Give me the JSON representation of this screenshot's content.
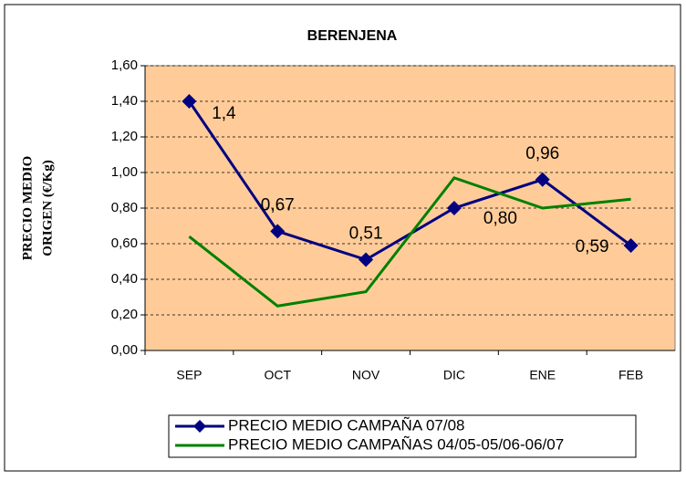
{
  "chart_data": {
    "type": "line",
    "title": "BERENJENA",
    "y_label": [
      "PRECIO MEDIO",
      "ORIGEN (€/Kg)"
    ],
    "categories": [
      "SEP",
      "OCT",
      "NOV",
      "DIC",
      "ENE",
      "FEB"
    ],
    "series": [
      {
        "name": "PRECIO MEDIO CAMPAÑA 07/08",
        "color": "#000080",
        "marker": "diamond",
        "values": [
          1.4,
          0.67,
          0.51,
          0.8,
          0.96,
          0.59
        ],
        "value_labels": [
          "1,4",
          "0,67",
          "0,51",
          "0,80",
          "0,96",
          "0,59"
        ]
      },
      {
        "name": "PRECIO MEDIO CAMPAÑAS 04/05-05/06-06/07",
        "color": "#008000",
        "values": [
          0.64,
          0.25,
          0.33,
          0.97,
          0.8,
          0.85
        ]
      }
    ],
    "ylim": [
      0,
      1.6
    ],
    "yticks": [
      {
        "value": 0,
        "label": "0,00"
      },
      {
        "value": 0.2,
        "label": "0,20"
      },
      {
        "value": 0.4,
        "label": "0,40"
      },
      {
        "value": 0.6,
        "label": "0,60"
      },
      {
        "value": 0.8,
        "label": "0,80"
      },
      {
        "value": 1.0,
        "label": "1,00"
      },
      {
        "value": 1.2,
        "label": "1,20"
      },
      {
        "value": 1.4,
        "label": "1,40"
      },
      {
        "value": 1.6,
        "label": "1,60"
      }
    ],
    "grid": true,
    "legend": "bottom"
  }
}
